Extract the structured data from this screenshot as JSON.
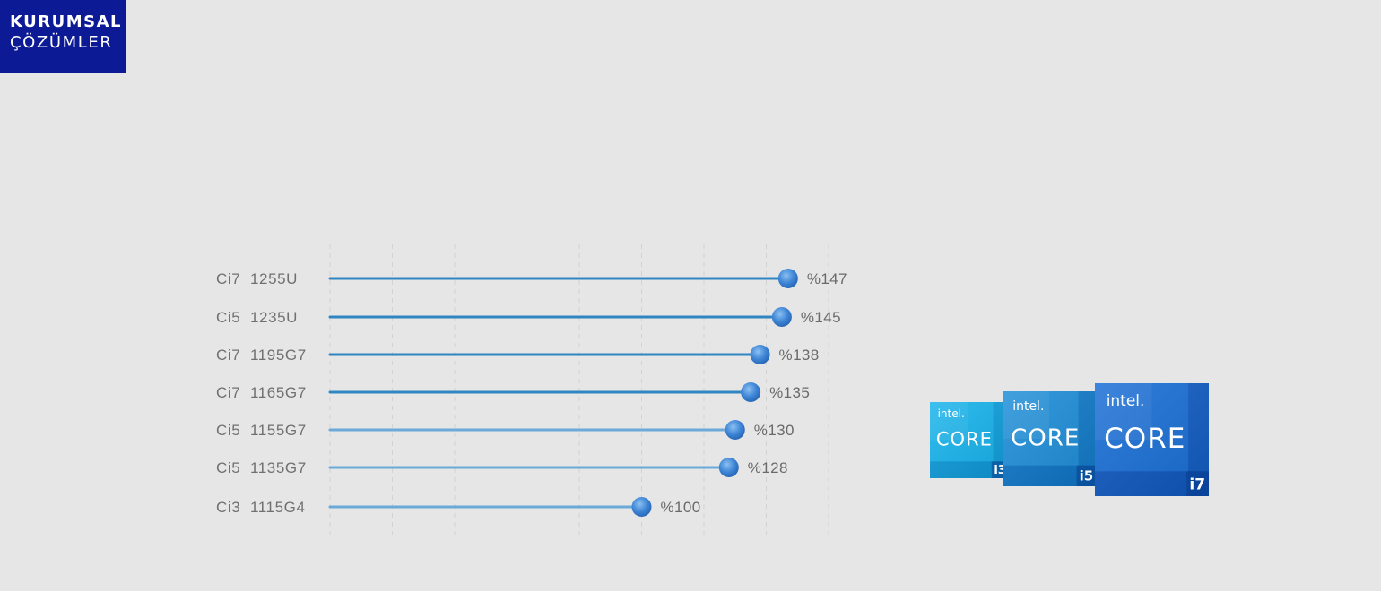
{
  "logo": {
    "line1": "KURUMSAL",
    "line2": "ÇÖZÜMLER",
    "background": "#0d1a96"
  },
  "chart_data": {
    "type": "lollipop",
    "orientation": "horizontal",
    "title": "",
    "xlabel": "",
    "ylabel": "",
    "categories": [
      "Ci7  1255U",
      "Ci5  1235U",
      "Ci7  1195G7",
      "Ci7  1165G7",
      "Ci5  1155G7",
      "Ci5  1135G7",
      "Ci3  1115G4"
    ],
    "values": [
      147,
      145,
      138,
      135,
      130,
      128,
      100
    ],
    "value_labels": [
      "%147",
      "%145",
      "%138",
      "%135",
      "%130",
      "%128",
      "%100"
    ],
    "xlim": [
      0,
      160
    ],
    "grid": {
      "vertical": true,
      "style": "dashed",
      "interval": 20
    },
    "colors": {
      "line_dark": "#2f86c2",
      "line_light": "#6aa9d8",
      "marker": "#3f86d6",
      "grid": "#d2d2d2"
    }
  },
  "badges": [
    {
      "brand": "intel.",
      "name": "CORE",
      "tier": "i3",
      "color_light": "#19b4ec",
      "color_dark": "#0a8fd0"
    },
    {
      "brand": "intel.",
      "name": "CORE",
      "tier": "i5",
      "color_light": "#1f8fd9",
      "color_dark": "#0a6bbd"
    },
    {
      "brand": "intel.",
      "name": "CORE",
      "tier": "i7",
      "color_light": "#1a6fd6",
      "color_dark": "#0c4fb4"
    }
  ]
}
